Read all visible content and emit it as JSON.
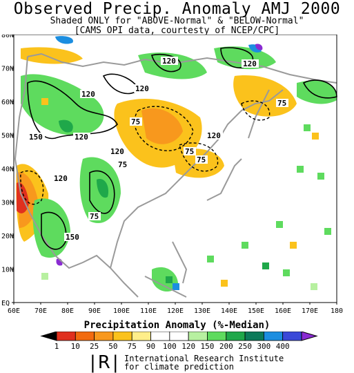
{
  "title": "Observed Precip. Anomaly AMJ 2000",
  "subtitle": "Shaded ONLY for \"ABOVE-Normal\" & \"BELOW-Normal\"",
  "credit": "[CAMS_OPI data, courtesty of NCEP/CPC]",
  "lat_labels": [
    "80N",
    "70N",
    "60N",
    "50N",
    "40N",
    "30N",
    "20N",
    "10N",
    "EQ"
  ],
  "lon_labels": [
    "60E",
    "70E",
    "80E",
    "90E",
    "100E",
    "110E",
    "120E",
    "130E",
    "140E",
    "150E",
    "160E",
    "170E",
    "180"
  ],
  "contour_labels": [
    "120",
    "120",
    "120",
    "120",
    "75",
    "150",
    "120",
    "120",
    "75",
    "75",
    "75",
    "120",
    "75",
    "150",
    "120",
    "75"
  ],
  "colorbar": {
    "title": "Precipitation Anomaly (%-Median)",
    "ticks": [
      "1",
      "10",
      "25",
      "50",
      "75",
      "90",
      "100",
      "120",
      "150",
      "200",
      "250",
      "300",
      "400"
    ],
    "colors": [
      "#000000",
      "#e0301e",
      "#f26b0f",
      "#f8981d",
      "#fbc21c",
      "#ffee8a",
      "#ffffff",
      "#ffffff",
      "#b7f0a0",
      "#5edb5e",
      "#1fa84a",
      "#0c7a5a",
      "#1c8ee0",
      "#3a49d8",
      "#8a2bd2"
    ]
  },
  "map_colors": {
    "dry_dark": "#e0301e",
    "dry": "#f8981d",
    "dry_light": "#fbc21c",
    "dry_pale": "#ffee8a",
    "wet_pale": "#b7f0a0",
    "wet": "#5edb5e",
    "wet_dark": "#1fa84a",
    "wet_deep": "#0c7a5a",
    "blue": "#1c8ee0",
    "purple": "#8a2bd2",
    "coast": "#9a9a9a"
  },
  "footer": {
    "logo": "|R|",
    "line1": "International Research Institute",
    "line2": "for climate prediction"
  }
}
